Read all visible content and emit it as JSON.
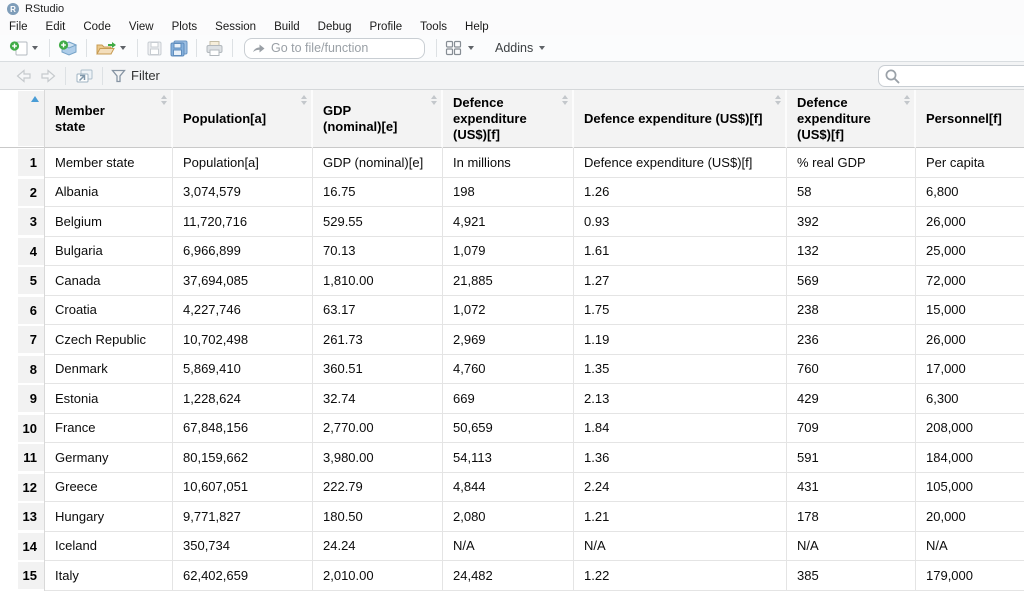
{
  "window": {
    "title": "RStudio"
  },
  "menu": {
    "items": [
      "File",
      "Edit",
      "Code",
      "View",
      "Plots",
      "Session",
      "Build",
      "Debug",
      "Profile",
      "Tools",
      "Help"
    ]
  },
  "toolbar": {
    "goto_placeholder": "Go to file/function",
    "addins_label": "Addins",
    "icons": [
      "new-file",
      "new-project",
      "open-folder",
      "save",
      "save-all",
      "print",
      "grid-panes"
    ]
  },
  "viewer_toolbar": {
    "filter_label": "Filter",
    "search_value": "",
    "icons": [
      "back",
      "forward",
      "show-in-new-window",
      "filter-funnel",
      "search"
    ]
  },
  "colors": {
    "sort_accent": "#4a9dd6"
  },
  "table": {
    "sorted_column": "row-number",
    "sort_direction": "ascending",
    "columns": [
      "Member state",
      "Population[a]",
      "GDP (nominal)[e]",
      "Defence expenditure (US$)[f]",
      "Defence expenditure (US$)[f]",
      "Defence expenditure (US$)[f]",
      "Personnel[f]"
    ],
    "rows": [
      [
        "1",
        "Member state",
        "Population[a]",
        "GDP (nominal)[e]",
        "In millions",
        "Defence expenditure (US$)[f]",
        "% real GDP",
        "Per capita"
      ],
      [
        "2",
        "Albania",
        "3,074,579",
        "16.75",
        "198",
        "1.26",
        "58",
        "6,800"
      ],
      [
        "3",
        "Belgium",
        "11,720,716",
        "529.55",
        "4,921",
        "0.93",
        "392",
        "26,000"
      ],
      [
        "4",
        "Bulgaria",
        "6,966,899",
        "70.13",
        "1,079",
        "1.61",
        "132",
        "25,000"
      ],
      [
        "5",
        "Canada",
        "37,694,085",
        "1,810.00",
        "21,885",
        "1.27",
        "569",
        "72,000"
      ],
      [
        "6",
        "Croatia",
        "4,227,746",
        "63.17",
        "1,072",
        "1.75",
        "238",
        "15,000"
      ],
      [
        "7",
        "Czech Republic",
        "10,702,498",
        "261.73",
        "2,969",
        "1.19",
        "236",
        "26,000"
      ],
      [
        "8",
        "Denmark",
        "5,869,410",
        "360.51",
        "4,760",
        "1.35",
        "760",
        "17,000"
      ],
      [
        "9",
        "Estonia",
        "1,228,624",
        "32.74",
        "669",
        "2.13",
        "429",
        "6,300"
      ],
      [
        "10",
        "France",
        "67,848,156",
        "2,770.00",
        "50,659",
        "1.84",
        "709",
        "208,000"
      ],
      [
        "11",
        "Germany",
        "80,159,662",
        "3,980.00",
        "54,113",
        "1.36",
        "591",
        "184,000"
      ],
      [
        "12",
        "Greece",
        "10,607,051",
        "222.79",
        "4,844",
        "2.24",
        "431",
        "105,000"
      ],
      [
        "13",
        "Hungary",
        "9,771,827",
        "180.50",
        "2,080",
        "1.21",
        "178",
        "20,000"
      ],
      [
        "14",
        "Iceland",
        "350,734",
        "24.24",
        "N/A",
        "N/A",
        "N/A",
        "N/A"
      ],
      [
        "15",
        "Italy",
        "62,402,659",
        "2,010.00",
        "24,482",
        "1.22",
        "385",
        "179,000"
      ]
    ]
  }
}
